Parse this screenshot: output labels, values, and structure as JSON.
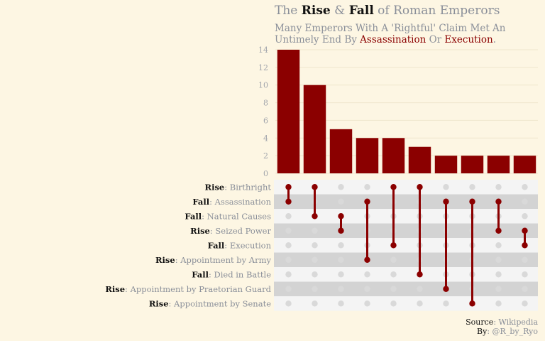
{
  "title": {
    "part1": "The ",
    "rise": "Rise",
    "part2": " & ",
    "fall": "Fall",
    "part3": " of Roman Emperors"
  },
  "subtitle": {
    "part1": "Many Emperors With A 'Rightful' Claim Met An Untimely End By ",
    "assassination": "Assassination",
    "part2": " Or ",
    "execution": "Execution",
    "part3": "."
  },
  "caption": {
    "source_key": "Source",
    "source_value": ": Wikipedia",
    "by_key": "By",
    "by_value": ": @R_by_Ryo"
  },
  "colors": {
    "bar": "#8b0000",
    "dot_on": "#8b0000",
    "dot_off": "#d9d9d9",
    "band_dark": "#d3d3d3",
    "band_light": "#f4f4f4",
    "axis_text": "#a0a4ab",
    "grid": "#efe6cd"
  },
  "chart_data": {
    "type": "bar",
    "subtype": "upset",
    "ylim": [
      0,
      14
    ],
    "yticks": [
      0,
      2,
      4,
      6,
      8,
      10,
      12,
      14
    ],
    "grid": true,
    "sets": [
      {
        "prefix": "Rise",
        "name": "Birthright"
      },
      {
        "prefix": "Fall",
        "name": "Assassination"
      },
      {
        "prefix": "Fall",
        "name": "Natural Causes"
      },
      {
        "prefix": "Rise",
        "name": "Seized Power"
      },
      {
        "prefix": "Fall",
        "name": "Execution"
      },
      {
        "prefix": "Rise",
        "name": "Appointment by Army"
      },
      {
        "prefix": "Fall",
        "name": "Died in Battle"
      },
      {
        "prefix": "Rise",
        "name": "Appointment by Praetorian Guard"
      },
      {
        "prefix": "Rise",
        "name": "Appointment by Senate"
      }
    ],
    "intersections": [
      {
        "sets": [
          "Birthright",
          "Assassination"
        ],
        "value": 14
      },
      {
        "sets": [
          "Birthright",
          "Natural Causes"
        ],
        "value": 10
      },
      {
        "sets": [
          "Natural Causes",
          "Seized Power"
        ],
        "value": 5
      },
      {
        "sets": [
          "Assassination",
          "Appointment by Army"
        ],
        "value": 4
      },
      {
        "sets": [
          "Birthright",
          "Execution"
        ],
        "value": 4
      },
      {
        "sets": [
          "Birthright",
          "Died in Battle"
        ],
        "value": 3
      },
      {
        "sets": [
          "Assassination",
          "Appointment by Praetorian Guard"
        ],
        "value": 2
      },
      {
        "sets": [
          "Assassination",
          "Appointment by Senate"
        ],
        "value": 2
      },
      {
        "sets": [
          "Assassination",
          "Seized Power"
        ],
        "value": 2
      },
      {
        "sets": [
          "Seized Power",
          "Execution"
        ],
        "value": 2
      }
    ]
  }
}
